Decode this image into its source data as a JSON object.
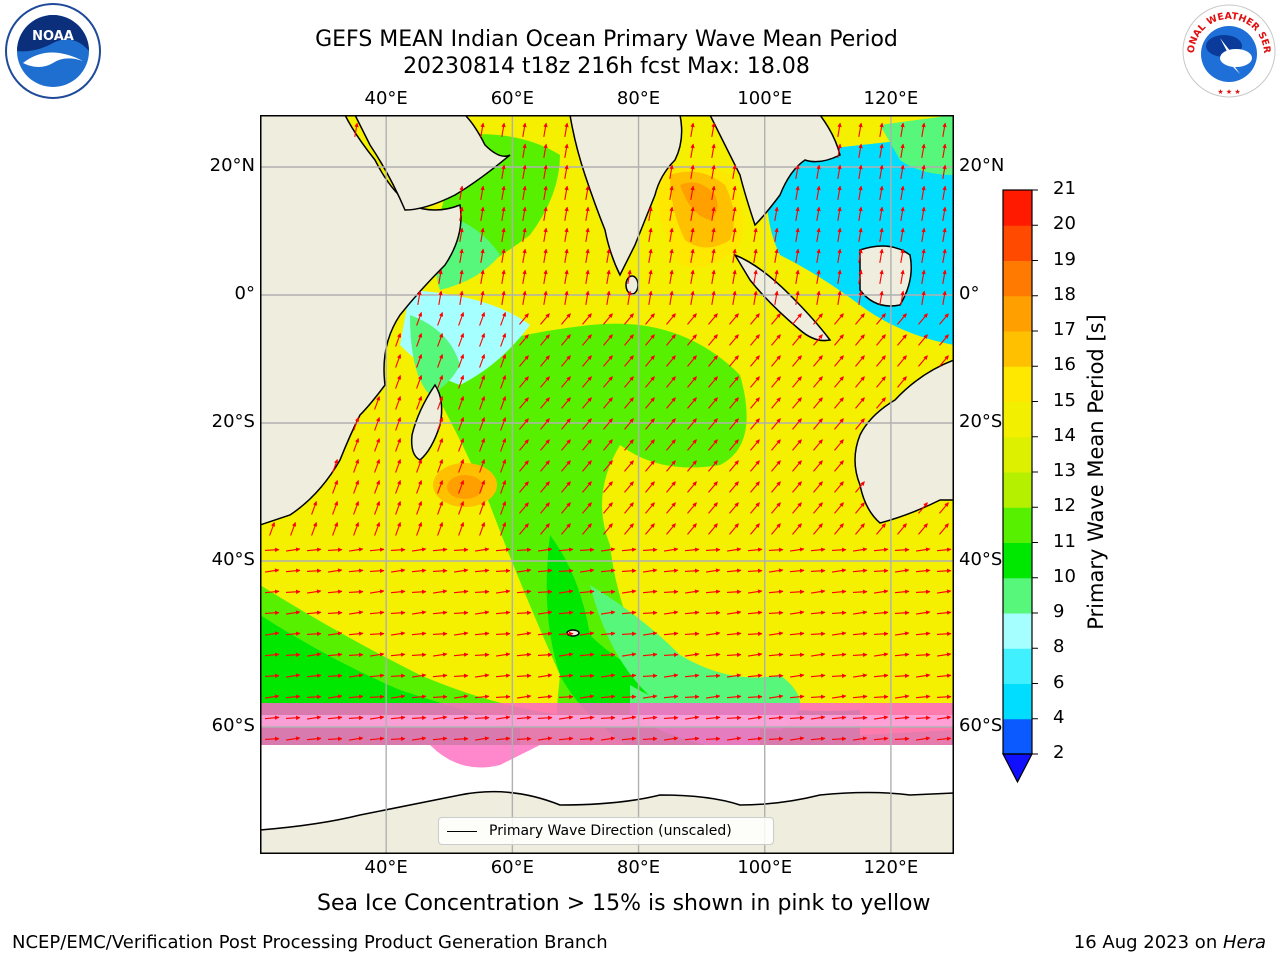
{
  "header": {
    "title_line1": "GEFS MEAN Indian Ocean Primary Wave Mean Period",
    "title_line2": "20230814 t18z 216h fcst   Max: 18.08"
  },
  "logos": {
    "noaa_text": "NOAA",
    "nws_text": "NATIONAL WEATHER SERVICE"
  },
  "map": {
    "lon_ticks": [
      "40°E",
      "60°E",
      "80°E",
      "100°E",
      "120°E"
    ],
    "lat_ticks": [
      "20°N",
      "0°",
      "20°S",
      "40°S",
      "60°S"
    ],
    "lon_values": [
      40,
      60,
      80,
      100,
      120
    ],
    "lat_values": [
      20,
      0,
      -20,
      -40,
      -60
    ],
    "extent": {
      "lon_min": 20,
      "lon_max": 130,
      "lat_min": -76,
      "lat_max": 28
    },
    "land_color": "#efedde",
    "arrow_color": "#ff0000"
  },
  "legend": {
    "label": "Primary Wave Direction (unscaled)"
  },
  "colorbar": {
    "title": "Primary Wave Mean Period [s]",
    "tick_labels": [
      "2",
      "4",
      "6",
      "8",
      "9",
      "10",
      "11",
      "12",
      "13",
      "14",
      "15",
      "16",
      "17",
      "18",
      "19",
      "20",
      "21"
    ],
    "colors": [
      "#0a5aff",
      "#00ddff",
      "#40f0ff",
      "#a6ffff",
      "#56f77a",
      "#00e800",
      "#56f000",
      "#b4f000",
      "#ddf000",
      "#f2f000",
      "#ffe800",
      "#ffc000",
      "#ffa000",
      "#ff7a00",
      "#ff4a00",
      "#ff1a00"
    ],
    "under_color": "#1010ff"
  },
  "note": "Sea Ice Concentration > 15% is shown in pink to yellow",
  "footer": {
    "left": "NCEP/EMC/Verification Post Processing Product Generation Branch",
    "right_date": "16 Aug 2023 on ",
    "right_host": "Hera"
  }
}
